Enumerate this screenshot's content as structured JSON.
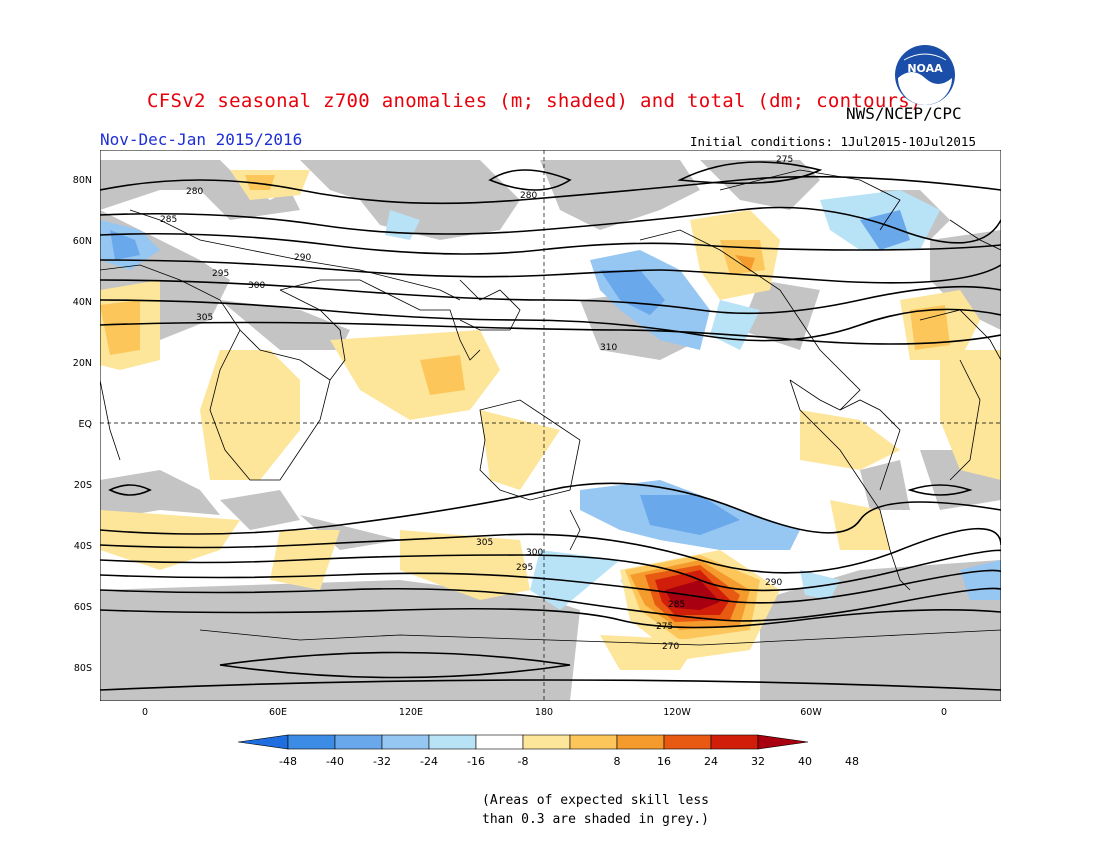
{
  "header": {
    "title": "CFSv2 seasonal z700 anomalies (m; shaded) and total (dm; contours)",
    "subtitle": "Nov-Dec-Jan 2015/2016",
    "agency": "NWS/NCEP/CPC",
    "initial_conditions": "Initial conditions: 1Jul2015-10Jul2015",
    "logo_text": "NOAA"
  },
  "map": {
    "lat_labels": [
      "80N",
      "60N",
      "40N",
      "20N",
      "EQ",
      "20S",
      "40S",
      "60S",
      "80S"
    ],
    "lon_labels": [
      "0",
      "60E",
      "120E",
      "180",
      "120W",
      "60W",
      "0"
    ],
    "contour_labels": [
      "275",
      "280",
      "285",
      "290",
      "295",
      "300",
      "305",
      "310",
      "305",
      "300",
      "295",
      "290",
      "285",
      "280",
      "275",
      "270"
    ],
    "colors": {
      "grey_skill": "#c4c4c4",
      "land_outline": "#000000"
    }
  },
  "colorbar": {
    "ticks": [
      "-48",
      "-40",
      "-32",
      "-24",
      "-16",
      "-8",
      "8",
      "16",
      "24",
      "32",
      "40",
      "48"
    ],
    "colors": [
      "#1e6ee0",
      "#3c8ce6",
      "#6aa8ec",
      "#96c6f2",
      "#b8e2f6",
      "#ffffff",
      "#fde59a",
      "#fcc65a",
      "#f59a2c",
      "#e85a12",
      "#d11e0a",
      "#a80010"
    ]
  },
  "footnote": {
    "line1": "(Areas of expected skill less",
    "line2": "than 0.3 are shaded in grey.)"
  }
}
